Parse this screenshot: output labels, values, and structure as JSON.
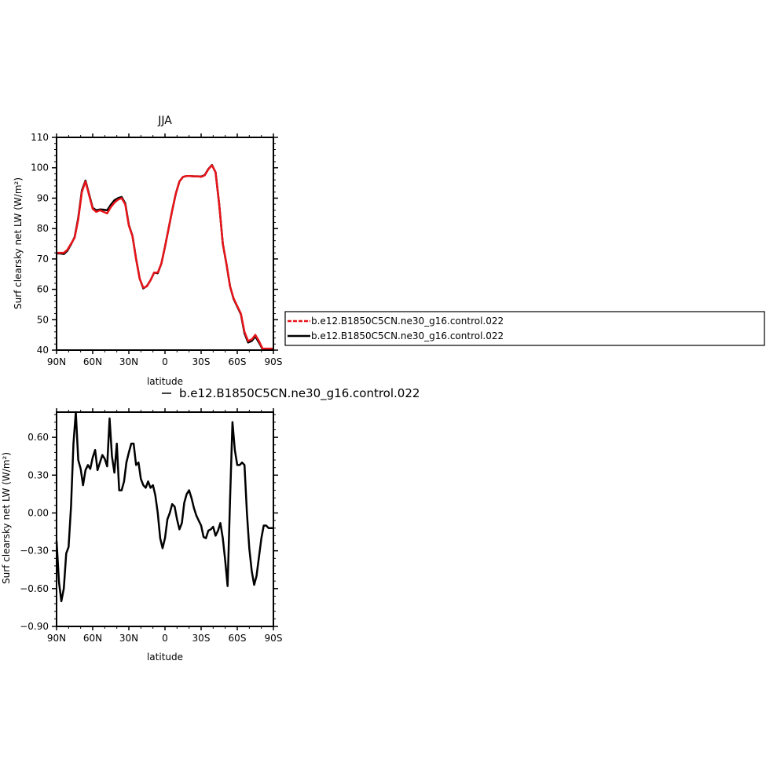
{
  "colors": {
    "control": "#000000",
    "test": "#e8141a"
  },
  "chart_data": [
    {
      "type": "line",
      "title": "JJA",
      "xlabel": "latitude",
      "ylabel": "Surf clearsky net LW (W/m²)",
      "xlim": [
        90,
        -90
      ],
      "ylim": [
        40,
        110
      ],
      "x_ticks": [
        90,
        60,
        30,
        0,
        -30,
        -60,
        -90
      ],
      "x_tick_labels": [
        "90N",
        "60N",
        "30N",
        "0",
        "30S",
        "60S",
        "90S"
      ],
      "y_ticks": [
        40,
        50,
        60,
        70,
        80,
        90,
        100,
        110
      ],
      "y_tick_labels": [
        "40",
        "50",
        "60",
        "70",
        "80",
        "90",
        "100",
        "110"
      ],
      "legend": {
        "placement": "right",
        "entries": [
          "b.e12.B1850C5CN.ne30_g16.control.022",
          "b.e12.B1850C5CN.ne30_g16.control.022"
        ]
      },
      "x": [
        90,
        87,
        84,
        81,
        78,
        75,
        72,
        69,
        66,
        63,
        60,
        57,
        54,
        51,
        48,
        45,
        42,
        39,
        36,
        33,
        30,
        27,
        24,
        21,
        18,
        15,
        12,
        9,
        6,
        3,
        0,
        -3,
        -6,
        -9,
        -12,
        -15,
        -18,
        -21,
        -24,
        -27,
        -30,
        -33,
        -36,
        -39,
        -42,
        -45,
        -48,
        -51,
        -54,
        -57,
        -60,
        -63,
        -66,
        -69,
        -72,
        -75,
        -78,
        -81,
        -84,
        -87,
        -90
      ],
      "series": [
        {
          "name": "b.e12.B1850C5CN.ne30_g16.control.022",
          "color": "#e8141a",
          "style": "dashed",
          "values": [
            72,
            72,
            72,
            73,
            75,
            77,
            83,
            92,
            95.5,
            91,
            86.5,
            85.5,
            86,
            85.5,
            85,
            87,
            88.5,
            89.5,
            90,
            88,
            81,
            77.5,
            70,
            63.5,
            60.5,
            61,
            63,
            65.5,
            65.5,
            68.5,
            74,
            80,
            86,
            91.5,
            95.5,
            97,
            97.3,
            97.3,
            97.2,
            97.2,
            97,
            97.5,
            99.5,
            100.8,
            98.5,
            88,
            75,
            68.5,
            61,
            57,
            54.5,
            52,
            46,
            43,
            43.5,
            45,
            43,
            40.5,
            40.5,
            40.5,
            40.5
          ]
        },
        {
          "name": "b.e12.B1850C5CN.ne30_g16.control.022",
          "color": "#000000",
          "style": "solid",
          "values": [
            71.8,
            71.8,
            71.6,
            72.7,
            74.8,
            77.2,
            83.5,
            92.5,
            95.8,
            91.3,
            86.8,
            86,
            86.3,
            86.2,
            86,
            87.8,
            89.3,
            90,
            90.4,
            88.3,
            81.2,
            77.6,
            70.1,
            63.5,
            60.3,
            61.1,
            63,
            65.5,
            65.3,
            68.5,
            74,
            80,
            86,
            91.5,
            95.5,
            97,
            97.3,
            97.3,
            97.2,
            97.2,
            97.1,
            97.6,
            99.6,
            100.9,
            98.5,
            88,
            75,
            68.4,
            61,
            56.8,
            54.3,
            51.8,
            45.5,
            42.5,
            43,
            44.5,
            42.5,
            40.3,
            40.2,
            40.2,
            40.2
          ]
        }
      ]
    },
    {
      "type": "line",
      "title": "",
      "xlabel": "latitude",
      "ylabel": "Surf clearsky net LW (W/m²)",
      "xlim": [
        90,
        -90
      ],
      "ylim": [
        -0.9,
        0.8
      ],
      "x_ticks": [
        90,
        60,
        30,
        0,
        -30,
        -60,
        -90
      ],
      "x_tick_labels": [
        "90N",
        "60N",
        "30N",
        "0",
        "30S",
        "60S",
        "90S"
      ],
      "y_ticks": [
        -0.9,
        -0.6,
        -0.3,
        0.0,
        0.3,
        0.6
      ],
      "y_tick_labels": [
        "−0.90",
        "−0.60",
        "−0.30",
        "0.00",
        "0.30",
        "0.60"
      ],
      "legend": {
        "placement": "top",
        "entries": [
          "b.e12.B1850C5CN.ne30_g16.control.022"
        ]
      },
      "x": [
        90,
        88,
        86,
        84,
        82,
        80,
        78,
        76,
        74,
        72,
        70,
        68,
        66,
        64,
        62,
        60,
        58,
        56,
        54,
        52,
        50,
        48,
        46,
        44,
        42,
        40,
        38,
        36,
        34,
        32,
        30,
        28,
        26,
        24,
        22,
        20,
        18,
        16,
        14,
        12,
        10,
        8,
        6,
        4,
        2,
        0,
        -2,
        -4,
        -6,
        -8,
        -10,
        -12,
        -14,
        -16,
        -18,
        -20,
        -22,
        -24,
        -26,
        -28,
        -30,
        -32,
        -34,
        -36,
        -38,
        -40,
        -42,
        -44,
        -46,
        -48,
        -50,
        -52,
        -54,
        -56,
        -58,
        -60,
        -62,
        -64,
        -66,
        -68,
        -70,
        -72,
        -74,
        -76,
        -78,
        -80,
        -82,
        -84,
        -86,
        -88,
        -90
      ],
      "series": [
        {
          "name": "b.e12.B1850C5CN.ne30_g16.control.022",
          "color": "#000000",
          "style": "solid",
          "values": [
            -0.22,
            -0.55,
            -0.7,
            -0.6,
            -0.32,
            -0.27,
            0.05,
            0.55,
            0.85,
            0.42,
            0.35,
            0.22,
            0.34,
            0.38,
            0.35,
            0.44,
            0.5,
            0.34,
            0.4,
            0.46,
            0.43,
            0.37,
            0.75,
            0.45,
            0.32,
            0.55,
            0.18,
            0.18,
            0.25,
            0.4,
            0.48,
            0.55,
            0.55,
            0.38,
            0.4,
            0.27,
            0.22,
            0.2,
            0.25,
            0.2,
            0.22,
            0.14,
            0.0,
            -0.2,
            -0.28,
            -0.2,
            -0.05,
            0.0,
            0.07,
            0.05,
            -0.05,
            -0.13,
            -0.08,
            0.08,
            0.15,
            0.18,
            0.12,
            0.04,
            -0.02,
            -0.06,
            -0.1,
            -0.19,
            -0.2,
            -0.14,
            -0.13,
            -0.11,
            -0.18,
            -0.14,
            -0.08,
            -0.2,
            -0.38,
            -0.58,
            0.1,
            0.72,
            0.5,
            0.38,
            0.38,
            0.4,
            0.38,
            0.0,
            -0.28,
            -0.46,
            -0.57,
            -0.5,
            -0.35,
            -0.2,
            -0.1,
            -0.1,
            -0.12,
            -0.12,
            -0.12
          ]
        }
      ]
    }
  ]
}
